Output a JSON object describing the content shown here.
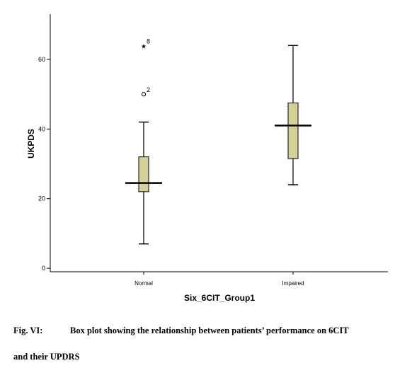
{
  "chart_data": {
    "type": "box",
    "xlabel": "Six_6CIT_Group1",
    "ylabel": "UKPDS",
    "ylim": [
      -1,
      73
    ],
    "yticks": [
      0,
      20,
      40,
      60
    ],
    "categories": [
      "Normal",
      "Impaired"
    ],
    "boxes": [
      {
        "category": "Normal",
        "whisker_low": 7,
        "q1": 22,
        "median": 24.5,
        "q3": 32,
        "whisker_high": 42,
        "outliers": [
          {
            "value": 50,
            "marker": "circle",
            "label": "2"
          },
          {
            "value": 64,
            "marker": "star",
            "label": "8"
          }
        ]
      },
      {
        "category": "Impaired",
        "whisker_low": 24,
        "q1": 31.5,
        "median": 41,
        "q3": 47.5,
        "whisker_high": 64,
        "outliers": []
      }
    ],
    "box_fill": "#d6d19b",
    "grid": false
  },
  "caption": {
    "label": "Fig. VI:",
    "text_line1": "Box plot showing the relationship between patients’ performance on 6CIT",
    "text_line2": "and their UPDRS"
  }
}
